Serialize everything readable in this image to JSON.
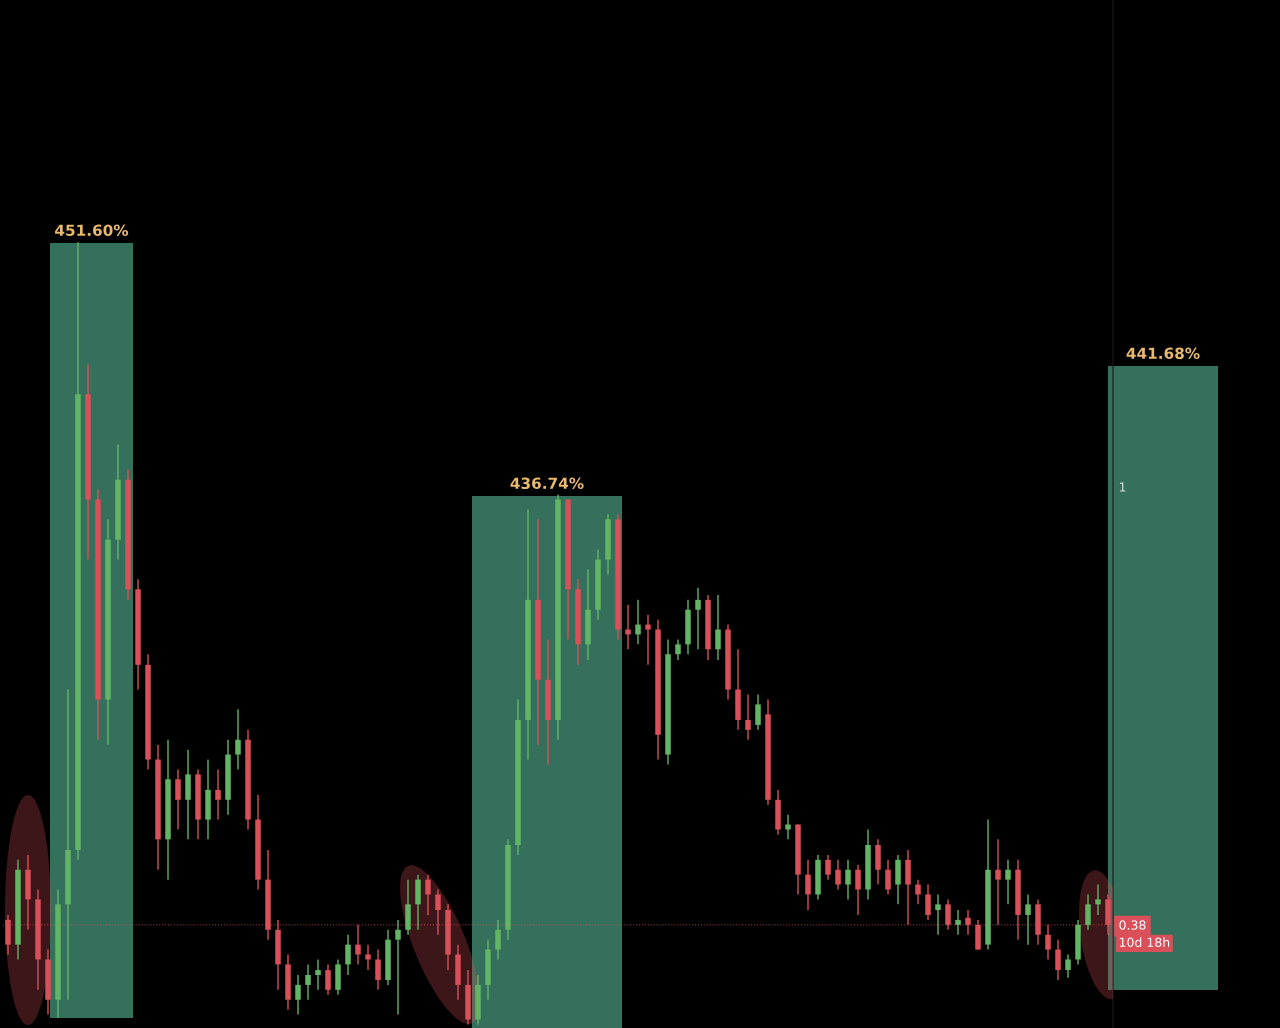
{
  "chart_data": {
    "type": "candlestick",
    "categories": [
      null,
      null,
      null,
      null,
      null,
      null,
      null,
      null,
      null,
      null,
      null,
      null,
      null,
      null,
      null,
      null,
      null,
      null,
      null,
      null,
      null,
      null,
      null,
      null,
      null,
      null,
      null,
      null,
      null,
      null,
      null,
      null,
      null,
      null,
      null,
      null,
      null,
      null,
      null,
      null,
      null,
      null,
      null,
      null,
      null,
      null,
      null,
      null,
      null,
      null,
      null,
      null,
      null,
      null,
      null,
      null,
      null,
      null,
      null,
      null,
      null,
      null,
      null,
      null,
      null,
      null,
      null,
      null,
      null,
      null,
      null,
      null,
      null,
      null,
      null,
      null,
      null,
      null,
      null,
      null,
      null,
      null,
      null,
      null,
      null,
      null,
      null,
      null,
      null,
      null,
      null,
      null,
      null,
      null,
      null,
      null,
      null,
      null,
      null,
      null,
      null,
      null,
      null,
      null,
      null,
      null,
      null,
      null,
      null,
      null,
      null
    ],
    "ohlc": [
      [
        0.387,
        0.394,
        0.338,
        0.352
      ],
      [
        0.352,
        0.472,
        0.331,
        0.458
      ],
      [
        0.458,
        0.479,
        0.373,
        0.416
      ],
      [
        0.416,
        0.43,
        0.288,
        0.331
      ],
      [
        0.331,
        0.345,
        0.253,
        0.274
      ],
      [
        0.274,
        0.43,
        0.248,
        0.409
      ],
      [
        0.409,
        0.713,
        0.274,
        0.486
      ],
      [
        0.486,
        1.346,
        0.472,
        1.131
      ],
      [
        1.131,
        1.173,
        0.897,
        0.982
      ],
      [
        0.982,
        0.996,
        0.642,
        0.699
      ],
      [
        0.699,
        0.954,
        0.635,
        0.925
      ],
      [
        0.925,
        1.06,
        0.897,
        1.01
      ],
      [
        1.01,
        1.024,
        0.84,
        0.855
      ],
      [
        0.855,
        0.869,
        0.713,
        0.748
      ],
      [
        0.748,
        0.763,
        0.6,
        0.614
      ],
      [
        0.614,
        0.635,
        0.458,
        0.501
      ],
      [
        0.501,
        0.642,
        0.444,
        0.586
      ],
      [
        0.586,
        0.6,
        0.515,
        0.557
      ],
      [
        0.557,
        0.628,
        0.501,
        0.593
      ],
      [
        0.593,
        0.6,
        0.501,
        0.529
      ],
      [
        0.529,
        0.614,
        0.501,
        0.571
      ],
      [
        0.571,
        0.6,
        0.529,
        0.557
      ],
      [
        0.557,
        0.642,
        0.536,
        0.621
      ],
      [
        0.621,
        0.685,
        0.6,
        0.642
      ],
      [
        0.642,
        0.656,
        0.515,
        0.529
      ],
      [
        0.529,
        0.564,
        0.43,
        0.444
      ],
      [
        0.444,
        0.486,
        0.359,
        0.373
      ],
      [
        0.373,
        0.387,
        0.288,
        0.324
      ],
      [
        0.324,
        0.338,
        0.26,
        0.274
      ],
      [
        0.274,
        0.309,
        0.253,
        0.295
      ],
      [
        0.295,
        0.324,
        0.274,
        0.309
      ],
      [
        0.309,
        0.331,
        0.288,
        0.316
      ],
      [
        0.316,
        0.324,
        0.281,
        0.288
      ],
      [
        0.288,
        0.331,
        0.281,
        0.324
      ],
      [
        0.324,
        0.366,
        0.309,
        0.352
      ],
      [
        0.352,
        0.38,
        0.324,
        0.338
      ],
      [
        0.338,
        0.352,
        0.316,
        0.331
      ],
      [
        0.331,
        0.345,
        0.288,
        0.302
      ],
      [
        0.302,
        0.373,
        0.295,
        0.359
      ],
      [
        0.359,
        0.387,
        0.253,
        0.373
      ],
      [
        0.373,
        0.444,
        0.366,
        0.409
      ],
      [
        0.409,
        0.451,
        0.373,
        0.444
      ],
      [
        0.444,
        0.451,
        0.394,
        0.423
      ],
      [
        0.423,
        0.43,
        0.366,
        0.401
      ],
      [
        0.401,
        0.409,
        0.316,
        0.338
      ],
      [
        0.338,
        0.352,
        0.274,
        0.295
      ],
      [
        0.295,
        0.316,
        0.239,
        0.246
      ],
      [
        0.246,
        0.309,
        0.239,
        0.295
      ],
      [
        0.295,
        0.359,
        0.274,
        0.345
      ],
      [
        0.345,
        0.387,
        0.331,
        0.373
      ],
      [
        0.373,
        0.501,
        0.359,
        0.493
      ],
      [
        0.493,
        0.699,
        0.479,
        0.67
      ],
      [
        0.67,
        0.968,
        0.614,
        0.84
      ],
      [
        0.84,
        0.954,
        0.635,
        0.727
      ],
      [
        0.727,
        0.784,
        0.607,
        0.67
      ],
      [
        0.67,
        0.989,
        0.642,
        0.982
      ],
      [
        0.982,
        0.982,
        0.784,
        0.855
      ],
      [
        0.855,
        0.869,
        0.748,
        0.777
      ],
      [
        0.777,
        0.883,
        0.755,
        0.826
      ],
      [
        0.826,
        0.911,
        0.812,
        0.897
      ],
      [
        0.897,
        0.961,
        0.876,
        0.954
      ],
      [
        0.954,
        0.961,
        0.784,
        0.798
      ],
      [
        0.798,
        0.833,
        0.77,
        0.791
      ],
      [
        0.791,
        0.84,
        0.777,
        0.805
      ],
      [
        0.805,
        0.819,
        0.748,
        0.798
      ],
      [
        0.798,
        0.812,
        0.614,
        0.649
      ],
      [
        0.621,
        0.784,
        0.607,
        0.763
      ],
      [
        0.763,
        0.784,
        0.755,
        0.777
      ],
      [
        0.777,
        0.84,
        0.763,
        0.826
      ],
      [
        0.826,
        0.857,
        0.77,
        0.84
      ],
      [
        0.84,
        0.847,
        0.755,
        0.77
      ],
      [
        0.77,
        0.847,
        0.755,
        0.798
      ],
      [
        0.798,
        0.805,
        0.699,
        0.713
      ],
      [
        0.713,
        0.77,
        0.656,
        0.67
      ],
      [
        0.67,
        0.706,
        0.642,
        0.656
      ],
      [
        0.663,
        0.706,
        0.656,
        0.692
      ],
      [
        0.678,
        0.699,
        0.55,
        0.557
      ],
      [
        0.557,
        0.571,
        0.508,
        0.515
      ],
      [
        0.515,
        0.536,
        0.501,
        0.522
      ],
      [
        0.522,
        0.522,
        0.423,
        0.451
      ],
      [
        0.451,
        0.472,
        0.401,
        0.423
      ],
      [
        0.423,
        0.479,
        0.416,
        0.472
      ],
      [
        0.472,
        0.479,
        0.444,
        0.451
      ],
      [
        0.458,
        0.472,
        0.43,
        0.437
      ],
      [
        0.437,
        0.472,
        0.416,
        0.458
      ],
      [
        0.458,
        0.465,
        0.394,
        0.43
      ],
      [
        0.43,
        0.515,
        0.416,
        0.493
      ],
      [
        0.493,
        0.501,
        0.437,
        0.458
      ],
      [
        0.458,
        0.472,
        0.423,
        0.43
      ],
      [
        0.437,
        0.479,
        0.409,
        0.472
      ],
      [
        0.472,
        0.486,
        0.38,
        0.437
      ],
      [
        0.437,
        0.444,
        0.409,
        0.423
      ],
      [
        0.423,
        0.437,
        0.387,
        0.394
      ],
      [
        0.401,
        0.423,
        0.366,
        0.409
      ],
      [
        0.409,
        0.416,
        0.373,
        0.38
      ],
      [
        0.38,
        0.401,
        0.366,
        0.387
      ],
      [
        0.39,
        0.401,
        0.366,
        0.38
      ],
      [
        0.38,
        0.387,
        0.345,
        0.345
      ],
      [
        0.352,
        0.529,
        0.345,
        0.458
      ],
      [
        0.458,
        0.501,
        0.38,
        0.444
      ],
      [
        0.444,
        0.472,
        0.409,
        0.458
      ],
      [
        0.458,
        0.472,
        0.359,
        0.394
      ],
      [
        0.394,
        0.423,
        0.352,
        0.409
      ],
      [
        0.409,
        0.416,
        0.352,
        0.366
      ],
      [
        0.366,
        0.38,
        0.331,
        0.345
      ],
      [
        0.345,
        0.359,
        0.302,
        0.316
      ],
      [
        0.316,
        0.338,
        0.305,
        0.331
      ],
      [
        0.331,
        0.387,
        0.324,
        0.38
      ],
      [
        0.38,
        0.423,
        0.373,
        0.409
      ],
      [
        0.409,
        0.437,
        0.394,
        0.416
      ],
      [
        0.416,
        0.423,
        0.366,
        0.38
      ]
    ],
    "ylim": [
      0.234,
      1.689
    ],
    "yticks": [
      0.38,
      1
    ],
    "tick_labels": "y",
    "grid": false,
    "ref_lines": [
      {
        "axis": "y",
        "value": 0.38,
        "color": "#d9505a",
        "line_style": "dotted"
      }
    ],
    "annotations": [
      "451.60%",
      "436.74%",
      "441.68%",
      "10d 18h"
    ]
  }
}
